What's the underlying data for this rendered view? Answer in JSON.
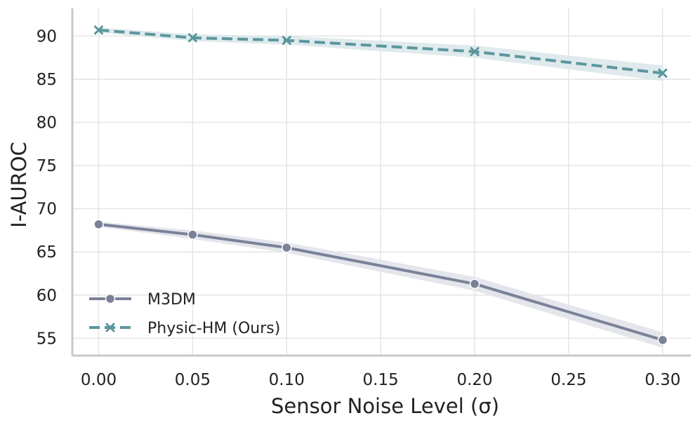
{
  "chart_data": {
    "type": "line",
    "title": "",
    "xlabel": "Sensor Noise Level (σ)",
    "ylabel": "I-AUROC",
    "xlim": [
      -0.014,
      0.315
    ],
    "ylim": [
      53.0,
      93.2
    ],
    "grid": true,
    "legend_position": "lower-left",
    "x_ticks": [
      0.0,
      0.05,
      0.1,
      0.15,
      0.2,
      0.25,
      0.3
    ],
    "x_tick_labels": [
      "0.00",
      "0.05",
      "0.10",
      "0.15",
      "0.20",
      "0.25",
      "0.30"
    ],
    "y_ticks": [
      55,
      60,
      65,
      70,
      75,
      80,
      85,
      90
    ],
    "y_tick_labels": [
      "55",
      "60",
      "65",
      "70",
      "75",
      "80",
      "85",
      "90"
    ],
    "x": [
      0.0,
      0.05,
      0.1,
      0.2,
      0.3
    ],
    "series": [
      {
        "name": "M3DM",
        "values": [
          68.2,
          67.0,
          65.5,
          61.3,
          54.8
        ],
        "ci_half_width": [
          0.3,
          0.5,
          0.6,
          0.8,
          0.9
        ],
        "color": "#7a8299",
        "band_color": "#e1e3ea",
        "marker": "circle",
        "linestyle": "solid"
      },
      {
        "name": "Physic-HM (Ours)",
        "values": [
          90.7,
          89.8,
          89.5,
          88.2,
          85.7
        ],
        "ci_half_width": [
          0.3,
          0.4,
          0.5,
          0.7,
          0.9
        ],
        "color": "#5b969e",
        "band_color": "#dbe8ea",
        "marker": "x",
        "linestyle": "dashed"
      }
    ]
  }
}
